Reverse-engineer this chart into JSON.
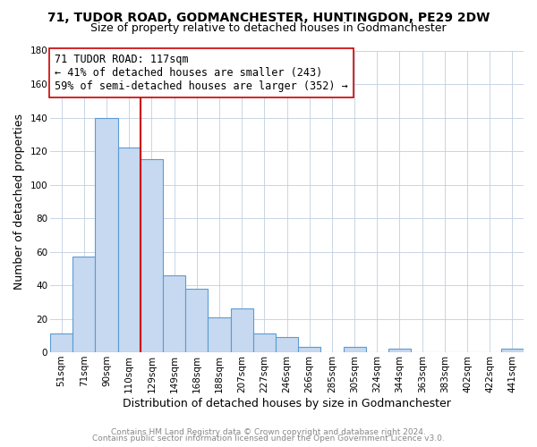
{
  "title": "71, TUDOR ROAD, GODMANCHESTER, HUNTINGDON, PE29 2DW",
  "subtitle": "Size of property relative to detached houses in Godmanchester",
  "xlabel": "Distribution of detached houses by size in Godmanchester",
  "ylabel": "Number of detached properties",
  "bar_labels": [
    "51sqm",
    "71sqm",
    "90sqm",
    "110sqm",
    "129sqm",
    "149sqm",
    "168sqm",
    "188sqm",
    "207sqm",
    "227sqm",
    "246sqm",
    "266sqm",
    "285sqm",
    "305sqm",
    "324sqm",
    "344sqm",
    "363sqm",
    "383sqm",
    "402sqm",
    "422sqm",
    "441sqm"
  ],
  "bar_heights": [
    11,
    57,
    140,
    122,
    115,
    46,
    38,
    21,
    26,
    11,
    9,
    3,
    0,
    3,
    0,
    2,
    0,
    0,
    0,
    0,
    2
  ],
  "bar_color": "#c6d9f0",
  "bar_edge_color": "#5b9bd5",
  "vline_color": "#cc0000",
  "ylim": [
    0,
    180
  ],
  "yticks": [
    0,
    20,
    40,
    60,
    80,
    100,
    120,
    140,
    160,
    180
  ],
  "annotation_line1": "71 TUDOR ROAD: 117sqm",
  "annotation_line2": "← 41% of detached houses are smaller (243)",
  "annotation_line3": "59% of semi-detached houses are larger (352) →",
  "annotation_box_color": "#ffffff",
  "annotation_box_edge": "#cc0000",
  "footer_line1": "Contains HM Land Registry data © Crown copyright and database right 2024.",
  "footer_line2": "Contains public sector information licensed under the Open Government Licence v3.0.",
  "title_fontsize": 10,
  "subtitle_fontsize": 9,
  "axis_label_fontsize": 9,
  "tick_fontsize": 7.5,
  "annotation_fontsize": 8.5,
  "footer_fontsize": 6.5
}
